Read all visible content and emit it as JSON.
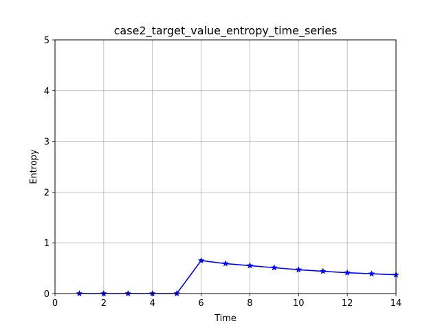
{
  "chart_data": {
    "type": "line",
    "title": "case2_target_value_entropy_time_series",
    "xlabel": "Time",
    "ylabel": "Entropy",
    "xlim": [
      0,
      14
    ],
    "ylim": [
      0,
      5
    ],
    "xticks": [
      0,
      2,
      4,
      6,
      8,
      10,
      12,
      14
    ],
    "yticks": [
      0,
      1,
      2,
      3,
      4,
      5
    ],
    "grid": true,
    "series": [
      {
        "color": "#0000ff",
        "marker": "star",
        "x": [
          1,
          2,
          3,
          4,
          5,
          6,
          7,
          8,
          9,
          10,
          11,
          12,
          13,
          14
        ],
        "y": [
          0,
          0,
          0,
          0,
          0,
          0.65,
          0.59,
          0.55,
          0.51,
          0.47,
          0.44,
          0.41,
          0.39,
          0.37
        ]
      }
    ]
  }
}
